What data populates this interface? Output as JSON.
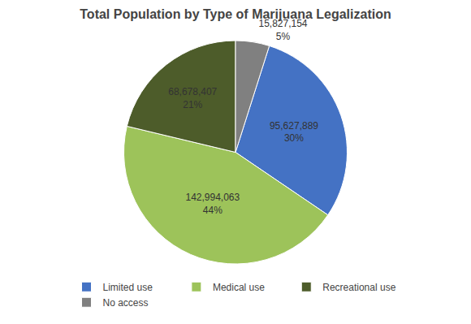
{
  "chart_data": {
    "type": "pie",
    "title": "Total Population by Type of Marijuana Legalization",
    "categories": [
      "Limited use",
      "Medical use",
      "Recreational use",
      "No access"
    ],
    "values": [
      95627889,
      142994063,
      68678407,
      15827154
    ],
    "value_labels": [
      "95,627,889\n30%",
      "142,994,063\n44%",
      "68,678,407\n21%",
      "15,827,154\n5%"
    ],
    "colors": [
      "#4472C4",
      "#9DC35A",
      "#4D5C2A",
      "#808080"
    ],
    "data_labels": true,
    "legend": "bottom"
  }
}
